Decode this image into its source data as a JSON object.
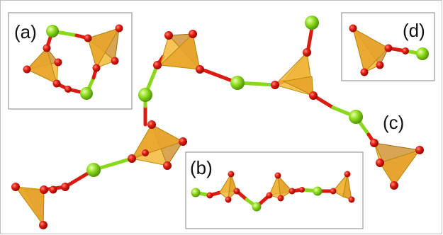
{
  "panels": {
    "a": {
      "label": "(a)"
    },
    "b": {
      "label": "(b)"
    },
    "c": {
      "label": "(c)"
    },
    "d": {
      "label": "(d)"
    }
  },
  "colors": {
    "oxygen": "#dd1a10",
    "chlorine": "#8ad81c",
    "tetrahedron": "#f2b434",
    "frame": "#9a9a9a"
  }
}
